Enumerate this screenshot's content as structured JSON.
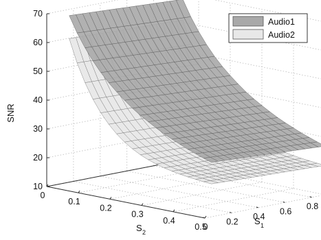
{
  "chart_data": {
    "type": "surface",
    "xlabel": "S",
    "xlabel_sub": "1",
    "ylabel": "S",
    "ylabel_sub": "2",
    "zlabel": "SNR",
    "xlim": [
      0,
      0.9
    ],
    "ylim": [
      0,
      0.5
    ],
    "zlim": [
      10,
      70
    ],
    "xticks": [
      "0",
      "0.2",
      "0.4",
      "0.6",
      "0.8"
    ],
    "yticks": [
      "0",
      "0.1",
      "0.2",
      "0.3",
      "0.4",
      "0.5"
    ],
    "zticks": [
      "10",
      "20",
      "30",
      "40",
      "50",
      "60",
      "70"
    ],
    "grid": true,
    "legend_position": "top-right",
    "s1": [
      0.05,
      0.1,
      0.15,
      0.2,
      0.25,
      0.3,
      0.35,
      0.4,
      0.45,
      0.5,
      0.55,
      0.6,
      0.65,
      0.7,
      0.75,
      0.8,
      0.85,
      0.9
    ],
    "s2": [
      0.05,
      0.075,
      0.1,
      0.125,
      0.15,
      0.175,
      0.2,
      0.225,
      0.25,
      0.275,
      0.3,
      0.325,
      0.35,
      0.375,
      0.4,
      0.425,
      0.45,
      0.475,
      0.5
    ],
    "series": [
      {
        "name": "Audio1",
        "color": "#a9a9a9",
        "edge": "#5e5e5e",
        "snr_at_s2": [
          70,
          64.5,
          59.9,
          55.9,
          52.4,
          49.4,
          46.8,
          44.4,
          42.2,
          40.3,
          38.6,
          37.0,
          35.5,
          34.2,
          33.0,
          31.8,
          30.8,
          29.8,
          28.9
        ],
        "s1_effect": 2.0
      },
      {
        "name": "Audio2",
        "color": "#e8e8e8",
        "edge": "#7a7a7a",
        "snr_at_s2": [
          62,
          54.1,
          47.8,
          42.6,
          38.4,
          35.0,
          32.2,
          29.9,
          28.1,
          26.6,
          25.4,
          24.5,
          23.7,
          23.1,
          22.6,
          22.2,
          21.9,
          21.6,
          21.4
        ],
        "s1_effect": 1.2
      }
    ]
  }
}
